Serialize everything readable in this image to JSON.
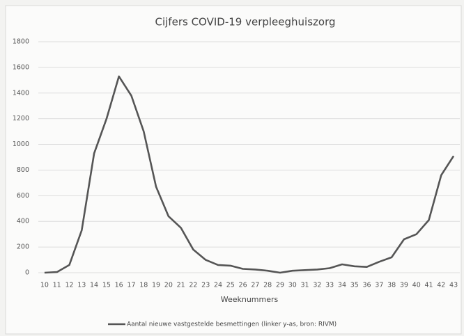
{
  "chart_data": {
    "type": "line",
    "title": "Cijfers COVID-19 verpleeghuiszorg",
    "x_label": "Weeknummers",
    "categories": [
      "10",
      "11",
      "12",
      "13",
      "14",
      "15",
      "16",
      "17",
      "18",
      "19",
      "20",
      "21",
      "22",
      "23",
      "24",
      "25",
      "26",
      "27",
      "28",
      "29",
      "30",
      "31",
      "32",
      "33",
      "34",
      "35",
      "36",
      "37",
      "38",
      "39",
      "40",
      "41",
      "42",
      "43"
    ],
    "series": [
      {
        "name": "Aantal nieuwe vastgestelde besmettingen  (linker y-as, bron: RIVM)",
        "color": "#555555",
        "values": [
          0,
          5,
          60,
          330,
          930,
          1200,
          1530,
          1380,
          1100,
          670,
          440,
          350,
          180,
          100,
          60,
          55,
          30,
          25,
          15,
          0,
          15,
          20,
          25,
          35,
          65,
          50,
          45,
          85,
          120,
          260,
          300,
          410,
          760,
          910
        ]
      }
    ],
    "ylim": [
      0,
      1800
    ],
    "yticks": [
      0,
      200,
      400,
      600,
      800,
      1000,
      1200,
      1400,
      1600,
      1800
    ],
    "grid": true,
    "legend": "bottom"
  }
}
